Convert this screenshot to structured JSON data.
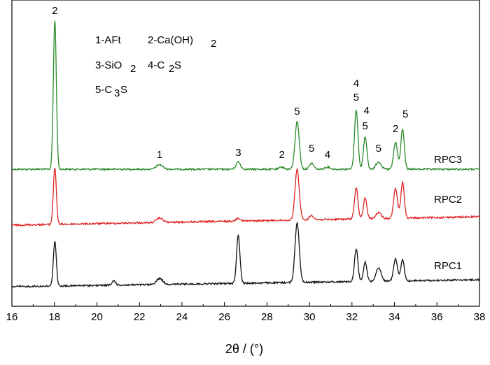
{
  "chart_data": {
    "type": "line",
    "xlabel": "2θ / (°)",
    "xlim": [
      16,
      38
    ],
    "x_ticks": [
      "16",
      "18",
      "20",
      "22",
      "24",
      "26",
      "28",
      "30",
      "32",
      "34",
      "36",
      "38"
    ],
    "legend_lines": [
      [
        "1-AFt",
        "2-Ca(OH)",
        "2",
        ""
      ],
      [
        "3-SiO",
        "2",
        "4-C",
        "2",
        "S"
      ],
      [
        "5-C",
        "3",
        "S"
      ]
    ],
    "series": [
      {
        "name": "RPC3",
        "color": "#2a8a2a",
        "baseline": 0,
        "peaks": [
          {
            "x": 18.02,
            "h": 100,
            "w": 0.07
          },
          {
            "x": 22.95,
            "h": 3,
            "w": 0.15
          },
          {
            "x": 26.65,
            "h": 5,
            "w": 0.1
          },
          {
            "x": 28.7,
            "h": 1.5,
            "w": 0.1
          },
          {
            "x": 29.42,
            "h": 32,
            "w": 0.1
          },
          {
            "x": 30.1,
            "h": 4,
            "w": 0.1
          },
          {
            "x": 30.85,
            "h": 1.5,
            "w": 0.12
          },
          {
            "x": 32.2,
            "h": 40,
            "w": 0.08
          },
          {
            "x": 32.62,
            "h": 22,
            "w": 0.08
          },
          {
            "x": 33.25,
            "h": 5,
            "w": 0.12
          },
          {
            "x": 34.05,
            "h": 18,
            "w": 0.09
          },
          {
            "x": 34.38,
            "h": 27,
            "w": 0.08
          }
        ]
      },
      {
        "name": "RPC2",
        "color": "#dd2222",
        "baseline": 0,
        "peaks": [
          {
            "x": 18.02,
            "h": 38,
            "w": 0.07
          },
          {
            "x": 22.95,
            "h": 3,
            "w": 0.15
          },
          {
            "x": 26.65,
            "h": 2,
            "w": 0.1
          },
          {
            "x": 29.42,
            "h": 34,
            "w": 0.1
          },
          {
            "x": 30.1,
            "h": 3,
            "w": 0.1
          },
          {
            "x": 32.2,
            "h": 21,
            "w": 0.08
          },
          {
            "x": 32.62,
            "h": 14,
            "w": 0.08
          },
          {
            "x": 33.25,
            "h": 4,
            "w": 0.12
          },
          {
            "x": 34.05,
            "h": 20,
            "w": 0.09
          },
          {
            "x": 34.38,
            "h": 24,
            "w": 0.08
          }
        ]
      },
      {
        "name": "RPC1",
        "color": "#111111",
        "baseline": 0,
        "peaks": [
          {
            "x": 18.02,
            "h": 30,
            "w": 0.07
          },
          {
            "x": 20.8,
            "h": 3,
            "w": 0.08
          },
          {
            "x": 22.95,
            "h": 4,
            "w": 0.15
          },
          {
            "x": 26.65,
            "h": 32,
            "w": 0.08
          },
          {
            "x": 29.42,
            "h": 40,
            "w": 0.1
          },
          {
            "x": 32.2,
            "h": 22,
            "w": 0.08
          },
          {
            "x": 32.62,
            "h": 13,
            "w": 0.08
          },
          {
            "x": 33.25,
            "h": 9,
            "w": 0.12
          },
          {
            "x": 34.05,
            "h": 15,
            "w": 0.09
          },
          {
            "x": 34.38,
            "h": 14,
            "w": 0.08
          }
        ]
      }
    ],
    "peak_labels": [
      {
        "x": 18.02,
        "text": "2"
      },
      {
        "x": 22.95,
        "text": "1"
      },
      {
        "x": 26.65,
        "text": "3"
      },
      {
        "x": 28.7,
        "text": "2"
      },
      {
        "x": 29.42,
        "text": "5"
      },
      {
        "x": 30.1,
        "text": "5"
      },
      {
        "x": 30.85,
        "text": "4"
      },
      {
        "x": 32.2,
        "text": "5"
      },
      {
        "x": 32.2,
        "text": "4"
      },
      {
        "x": 32.62,
        "text": "4"
      },
      {
        "x": 32.62,
        "text": "5"
      },
      {
        "x": 33.25,
        "text": "5"
      },
      {
        "x": 34.05,
        "text": "2"
      },
      {
        "x": 34.45,
        "text": "5"
      }
    ]
  }
}
